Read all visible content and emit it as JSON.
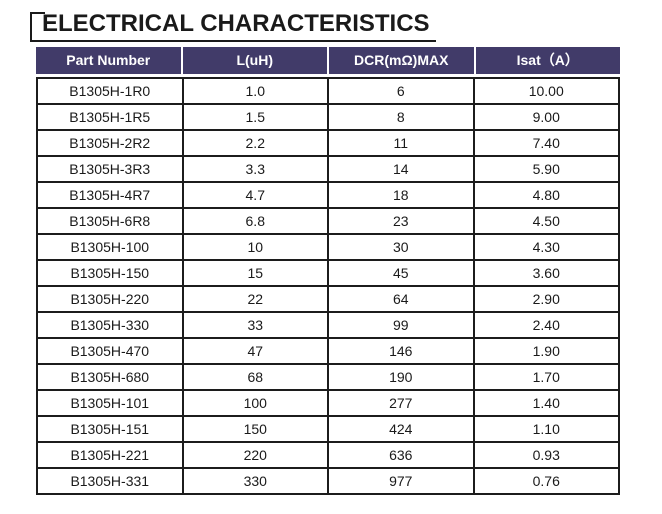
{
  "page": {
    "title": "ELECTRICAL CHARACTERISTICS"
  },
  "colors": {
    "header_background": "#413b69",
    "header_text": "#ffffff",
    "grid_border": "#1c1c1c",
    "title_text": "#1a1a1a"
  },
  "table": {
    "headers": [
      "Part Number",
      "L(uH)",
      "DCR(mΩ)MAX",
      "Isat（A）"
    ],
    "rows": [
      [
        "B1305H-1R0",
        "1.0",
        "6",
        "10.00"
      ],
      [
        "B1305H-1R5",
        "1.5",
        "8",
        "9.00"
      ],
      [
        "B1305H-2R2",
        "2.2",
        "11",
        "7.40"
      ],
      [
        "B1305H-3R3",
        "3.3",
        "14",
        "5.90"
      ],
      [
        "B1305H-4R7",
        "4.7",
        "18",
        "4.80"
      ],
      [
        "B1305H-6R8",
        "6.8",
        "23",
        "4.50"
      ],
      [
        "B1305H-100",
        "10",
        "30",
        "4.30"
      ],
      [
        "B1305H-150",
        "15",
        "45",
        "3.60"
      ],
      [
        "B1305H-220",
        "22",
        "64",
        "2.90"
      ],
      [
        "B1305H-330",
        "33",
        "99",
        "2.40"
      ],
      [
        "B1305H-470",
        "47",
        "146",
        "1.90"
      ],
      [
        "B1305H-680",
        "68",
        "190",
        "1.70"
      ],
      [
        "B1305H-101",
        "100",
        "277",
        "1.40"
      ],
      [
        "B1305H-151",
        "150",
        "424",
        "1.10"
      ],
      [
        "B1305H-221",
        "220",
        "636",
        "0.93"
      ],
      [
        "B1305H-331",
        "330",
        "977",
        "0.76"
      ]
    ]
  }
}
